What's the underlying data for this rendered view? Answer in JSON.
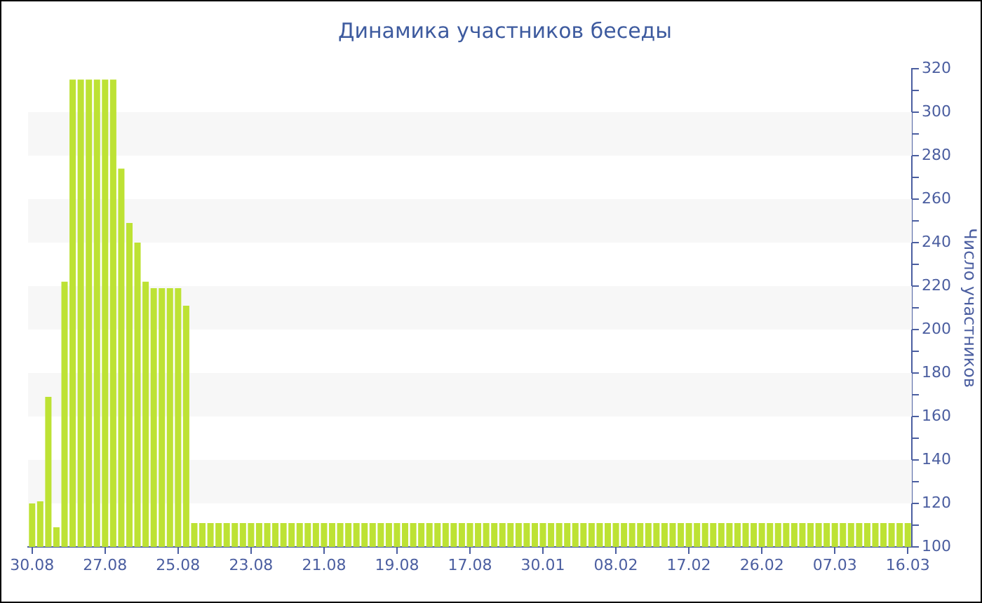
{
  "chart_data": {
    "type": "bar",
    "title": "Динамика участников беседы",
    "ylabel": "Число участников",
    "categories": [
      "30.08",
      null,
      null,
      null,
      null,
      null,
      null,
      null,
      null,
      "27.08",
      null,
      null,
      null,
      null,
      null,
      null,
      null,
      null,
      "25.08",
      null,
      null,
      null,
      null,
      null,
      null,
      null,
      null,
      "23.08",
      null,
      null,
      null,
      null,
      null,
      null,
      null,
      null,
      "21.08",
      null,
      null,
      null,
      null,
      null,
      null,
      null,
      null,
      "19.08",
      null,
      null,
      null,
      null,
      null,
      null,
      null,
      null,
      "17.08",
      null,
      null,
      null,
      null,
      null,
      null,
      null,
      null,
      "30.01",
      null,
      null,
      null,
      null,
      null,
      null,
      null,
      null,
      "08.02",
      null,
      null,
      null,
      null,
      null,
      null,
      null,
      null,
      "17.02",
      null,
      null,
      null,
      null,
      null,
      null,
      null,
      null,
      "26.02",
      null,
      null,
      null,
      null,
      null,
      null,
      null,
      null,
      "07.03",
      null,
      null,
      null,
      null,
      null,
      null,
      null,
      null,
      "16.03"
    ],
    "values": [
      120,
      121,
      169,
      109,
      222,
      315,
      315,
      315,
      315,
      315,
      315,
      274,
      249,
      240,
      222,
      219,
      219,
      219,
      219,
      211,
      111,
      111,
      111,
      111,
      111,
      111,
      111,
      111,
      111,
      111,
      111,
      111,
      111,
      111,
      111,
      111,
      111,
      111,
      111,
      111,
      111,
      111,
      111,
      111,
      111,
      111,
      111,
      111,
      111,
      111,
      111,
      111,
      111,
      111,
      111,
      111,
      111,
      111,
      111,
      111,
      111,
      111,
      111,
      111,
      111,
      111,
      111,
      111,
      111,
      111,
      111,
      111,
      111,
      111,
      111,
      111,
      111,
      111,
      111,
      111,
      111,
      111,
      111,
      111,
      111,
      111,
      111,
      111,
      111,
      111,
      111,
      111,
      111,
      111,
      111,
      111,
      111,
      111,
      111,
      111,
      111,
      111,
      111,
      111,
      111,
      111,
      111,
      111,
      111
    ],
    "color": "#bde234",
    "ylim": [
      100,
      320
    ],
    "yticks": [
      100,
      {
        "value": 110,
        "label": null
      },
      120,
      {
        "value": 130,
        "label": null
      },
      140,
      {
        "value": 150,
        "label": null
      },
      160,
      {
        "value": 170,
        "label": null
      },
      180,
      {
        "value": 190,
        "label": null
      },
      200,
      {
        "value": 210,
        "label": null
      },
      220,
      {
        "value": 230,
        "label": null
      },
      240,
      {
        "value": 250,
        "label": null
      },
      260,
      {
        "value": 270,
        "label": null
      },
      280,
      {
        "value": 290,
        "label": null
      },
      300,
      {
        "value": 310,
        "label": null
      },
      320
    ],
    "bands": [
      {
        "axis": "y",
        "from": 120,
        "to": 140,
        "color": "#f7f7f7"
      },
      {
        "axis": "y",
        "from": 160,
        "to": 180,
        "color": "#f7f7f7"
      },
      {
        "axis": "y",
        "from": 200,
        "to": 220,
        "color": "#f7f7f7"
      },
      {
        "axis": "y",
        "from": 240,
        "to": 260,
        "color": "#f7f7f7"
      },
      {
        "axis": "y",
        "from": 280,
        "to": 300,
        "color": "#f7f7f7"
      }
    ]
  }
}
